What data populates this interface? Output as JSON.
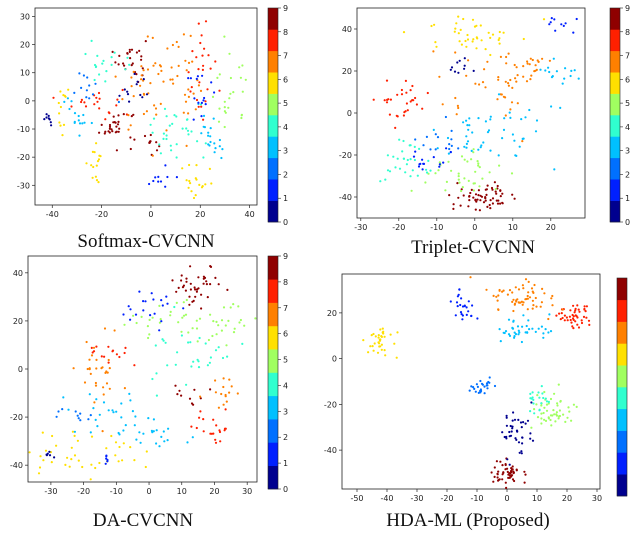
{
  "panels": [
    {
      "caption": "Softmax-CVCNN",
      "colorbar_ticks": [
        "0",
        "1",
        "2",
        "3",
        "4",
        "5",
        "6",
        "7",
        "8",
        "9"
      ],
      "chart_data": {
        "type": "scatter",
        "title": "Softmax-CVCNN",
        "xlim": [
          -47,
          43
        ],
        "ylim": [
          -37,
          33
        ],
        "xticks": [
          -40,
          -20,
          0,
          20,
          40
        ],
        "yticks": [
          -30,
          -20,
          -10,
          0,
          10,
          20,
          30
        ],
        "colorbar": {
          "min": 0,
          "max": 9,
          "colormap": "jet"
        },
        "clusters": [
          {
            "label": 9,
            "cx": -8,
            "cy": 15,
            "sx": 3,
            "sy": 4,
            "n": 25
          },
          {
            "label": 9,
            "cx": -14,
            "cy": -9,
            "sx": 4,
            "sy": 3,
            "n": 30
          },
          {
            "label": 9,
            "cx": 0,
            "cy": -15,
            "sx": 2,
            "sy": 2,
            "n": 10
          },
          {
            "label": 8,
            "cx": -22,
            "cy": 0,
            "sx": 5,
            "sy": 3,
            "n": 20
          },
          {
            "label": 8,
            "cx": 20,
            "cy": 12,
            "sx": 3,
            "sy": 10,
            "n": 25
          },
          {
            "label": 7,
            "cx": -2,
            "cy": 5,
            "sx": 6,
            "sy": 8,
            "n": 40
          },
          {
            "label": 7,
            "cx": 14,
            "cy": 7,
            "sx": 3,
            "sy": 9,
            "n": 25
          },
          {
            "label": 6,
            "cx": -22,
            "cy": -22,
            "sx": 2,
            "sy": 3,
            "n": 15
          },
          {
            "label": 6,
            "cx": 20,
            "cy": -30,
            "sx": 4,
            "sy": 4,
            "n": 18
          },
          {
            "label": 6,
            "cx": -36,
            "cy": -3,
            "sx": 2,
            "sy": 4,
            "n": 12
          },
          {
            "label": 5,
            "cx": 32,
            "cy": 2,
            "sx": 4,
            "sy": 7,
            "n": 25
          },
          {
            "label": 4,
            "cx": 10,
            "cy": -12,
            "sx": 6,
            "sy": 5,
            "n": 30
          },
          {
            "label": 4,
            "cx": -18,
            "cy": 15,
            "sx": 4,
            "sy": 5,
            "n": 18
          },
          {
            "label": 3,
            "cx": 25,
            "cy": -12,
            "sx": 3,
            "sy": 4,
            "n": 20
          },
          {
            "label": 3,
            "cx": -30,
            "cy": -5,
            "sx": 3,
            "sy": 3,
            "n": 15
          },
          {
            "label": 2,
            "cx": -25,
            "cy": 5,
            "sx": 4,
            "sy": 3,
            "n": 12
          },
          {
            "label": 1,
            "cx": 5,
            "cy": -27,
            "sx": 2,
            "sy": 2,
            "n": 10
          },
          {
            "label": 1,
            "cx": 20,
            "cy": 2,
            "sx": 3,
            "sy": 5,
            "n": 15
          },
          {
            "label": 0,
            "cx": -42,
            "cy": -6,
            "sx": 1,
            "sy": 2,
            "n": 8
          },
          {
            "label": 0,
            "cx": -8,
            "cy": 3,
            "sx": 3,
            "sy": 3,
            "n": 12
          }
        ]
      }
    },
    {
      "caption": "Triplet-CVCNN",
      "colorbar_ticks": [
        "0",
        "1",
        "2",
        "3",
        "4",
        "5",
        "6",
        "7",
        "8",
        "9"
      ],
      "chart_data": {
        "type": "scatter",
        "title": "Triplet-CVCNN",
        "xlim": [
          -31,
          29
        ],
        "ylim": [
          -50,
          50
        ],
        "xticks": [
          -30,
          -20,
          -10,
          0,
          10,
          20
        ],
        "yticks": [
          -40,
          -20,
          0,
          20,
          40
        ],
        "colorbar": {
          "min": 0,
          "max": 9,
          "colormap": "jet"
        },
        "clusters": [
          {
            "label": 9,
            "cx": 3,
            "cy": -40,
            "sx": 4,
            "sy": 3,
            "n": 60
          },
          {
            "label": 8,
            "cx": -20,
            "cy": 5,
            "sx": 4,
            "sy": 5,
            "n": 30
          },
          {
            "label": 7,
            "cx": 5,
            "cy": 15,
            "sx": 6,
            "sy": 8,
            "n": 40
          },
          {
            "label": 7,
            "cx": 15,
            "cy": 22,
            "sx": 4,
            "sy": 4,
            "n": 20
          },
          {
            "label": 6,
            "cx": 0,
            "cy": 38,
            "sx": 6,
            "sy": 4,
            "n": 40
          },
          {
            "label": 5,
            "cx": -5,
            "cy": -28,
            "sx": 6,
            "sy": 6,
            "n": 40
          },
          {
            "label": 4,
            "cx": -20,
            "cy": -25,
            "sx": 4,
            "sy": 6,
            "n": 30
          },
          {
            "label": 3,
            "cx": 5,
            "cy": -10,
            "sx": 8,
            "sy": 8,
            "n": 50
          },
          {
            "label": 3,
            "cx": 22,
            "cy": 20,
            "sx": 3,
            "sy": 3,
            "n": 15
          },
          {
            "label": 2,
            "cx": -10,
            "cy": -15,
            "sx": 4,
            "sy": 4,
            "n": 15
          },
          {
            "label": 1,
            "cx": -12,
            "cy": -22,
            "sx": 4,
            "sy": 3,
            "n": 15
          },
          {
            "label": 1,
            "cx": 22,
            "cy": 43,
            "sx": 2,
            "sy": 3,
            "n": 10
          },
          {
            "label": 0,
            "cx": -3,
            "cy": 20,
            "sx": 2,
            "sy": 3,
            "n": 10
          }
        ]
      }
    },
    {
      "caption": "DA-CVCNN",
      "colorbar_ticks": [
        "0",
        "1",
        "2",
        "3",
        "4",
        "5",
        "6",
        "7",
        "8",
        "9"
      ],
      "chart_data": {
        "type": "scatter",
        "title": "DA-CVCNN",
        "xlim": [
          -37,
          33
        ],
        "ylim": [
          -47,
          47
        ],
        "xticks": [
          -30,
          -20,
          -10,
          0,
          10,
          20,
          30
        ],
        "yticks": [
          -40,
          -20,
          0,
          20,
          40
        ],
        "colorbar": {
          "min": 0,
          "max": 9,
          "colormap": "jet"
        },
        "clusters": [
          {
            "label": 9,
            "cx": 15,
            "cy": 35,
            "sx": 4,
            "sy": 4,
            "n": 40
          },
          {
            "label": 9,
            "cx": 12,
            "cy": -10,
            "sx": 3,
            "sy": 3,
            "n": 10
          },
          {
            "label": 8,
            "cx": 20,
            "cy": -25,
            "sx": 3,
            "sy": 4,
            "n": 20
          },
          {
            "label": 8,
            "cx": -12,
            "cy": 5,
            "sx": 4,
            "sy": 3,
            "n": 15
          },
          {
            "label": 7,
            "cx": -15,
            "cy": 0,
            "sx": 3,
            "sy": 8,
            "n": 30
          },
          {
            "label": 7,
            "cx": 22,
            "cy": -10,
            "sx": 3,
            "sy": 3,
            "n": 15
          },
          {
            "label": 6,
            "cx": -18,
            "cy": -35,
            "sx": 12,
            "sy": 5,
            "n": 40
          },
          {
            "label": 5,
            "cx": 15,
            "cy": 20,
            "sx": 10,
            "sy": 5,
            "n": 50
          },
          {
            "label": 4,
            "cx": 12,
            "cy": 5,
            "sx": 8,
            "sy": 6,
            "n": 30
          },
          {
            "label": 3,
            "cx": -10,
            "cy": -20,
            "sx": 6,
            "sy": 6,
            "n": 30
          },
          {
            "label": 3,
            "cx": 5,
            "cy": -28,
            "sx": 5,
            "sy": 3,
            "n": 15
          },
          {
            "label": 2,
            "cx": -22,
            "cy": -18,
            "sx": 3,
            "sy": 2,
            "n": 10
          },
          {
            "label": 1,
            "cx": -13,
            "cy": -38,
            "sx": 1,
            "sy": 1,
            "n": 6
          },
          {
            "label": 1,
            "cx": 0,
            "cy": 25,
            "sx": 6,
            "sy": 4,
            "n": 20
          },
          {
            "label": 0,
            "cx": -30,
            "cy": -36,
            "sx": 1,
            "sy": 1,
            "n": 6
          }
        ]
      }
    },
    {
      "caption": "HDA-ML (Proposed)",
      "colorbar_ticks": [],
      "chart_data": {
        "type": "scatter",
        "title": "HDA-ML (Proposed)",
        "xlim": [
          -55,
          31
        ],
        "ylim": [
          -57,
          37
        ],
        "xticks": [
          -50,
          -40,
          -30,
          -20,
          -10,
          0,
          10,
          20,
          30
        ],
        "yticks": [
          -40,
          -20,
          0,
          20
        ],
        "colorbar": {
          "min": 0,
          "max": 9,
          "colormap": "jet"
        },
        "clusters": [
          {
            "label": 9,
            "cx": 0,
            "cy": -50,
            "sx": 2.5,
            "sy": 3,
            "n": 50
          },
          {
            "label": 8,
            "cx": 23,
            "cy": 18,
            "sx": 3,
            "sy": 3,
            "n": 45
          },
          {
            "label": 7,
            "cx": 5,
            "cy": 27,
            "sx": 6,
            "sy": 4,
            "n": 60
          },
          {
            "label": 6,
            "cx": -42,
            "cy": 8,
            "sx": 2.5,
            "sy": 3.5,
            "n": 35
          },
          {
            "label": 5,
            "cx": 15,
            "cy": -22,
            "sx": 4,
            "sy": 4,
            "n": 50
          },
          {
            "label": 4,
            "cx": 10,
            "cy": -18,
            "sx": 3,
            "sy": 3,
            "n": 20
          },
          {
            "label": 3,
            "cx": 5,
            "cy": 13,
            "sx": 5,
            "sy": 3,
            "n": 40
          },
          {
            "label": 2,
            "cx": -8,
            "cy": -12,
            "sx": 2,
            "sy": 2,
            "n": 25
          },
          {
            "label": 1,
            "cx": -15,
            "cy": 22,
            "sx": 2,
            "sy": 4,
            "n": 25
          },
          {
            "label": 0,
            "cx": 3,
            "cy": -33,
            "sx": 2.5,
            "sy": 6,
            "n": 40
          }
        ]
      }
    }
  ]
}
